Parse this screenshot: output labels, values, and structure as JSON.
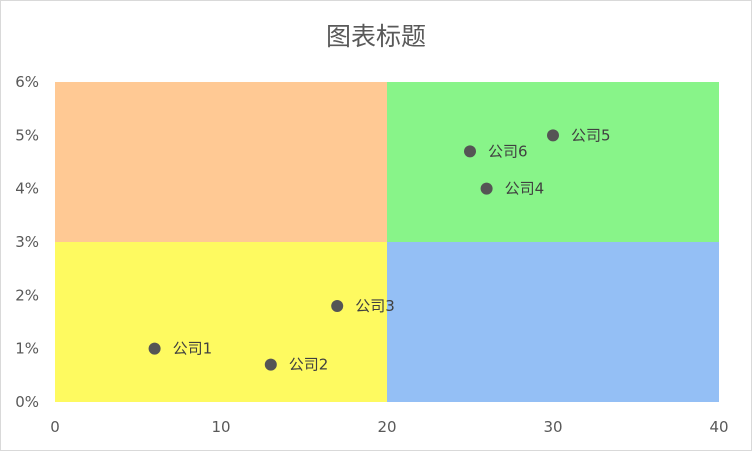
{
  "chart_data": {
    "type": "scatter",
    "title": "图表标题",
    "xlim": [
      0,
      40
    ],
    "ylim": [
      0,
      0.06
    ],
    "x_ticks": [
      0,
      10,
      20,
      30,
      40
    ],
    "y_ticks": [
      0,
      0.01,
      0.02,
      0.03,
      0.04,
      0.05,
      0.06
    ],
    "x_tick_labels": [
      "0",
      "10",
      "20",
      "30",
      "40"
    ],
    "y_tick_labels": [
      "0%",
      "1%",
      "2%",
      "3%",
      "4%",
      "5%",
      "6%"
    ],
    "quadrant_split": {
      "x": 20,
      "y": 0.03
    },
    "quadrant_colors": {
      "top_left": "#ffc994",
      "top_right": "#88f489",
      "bottom_left": "#fefa60",
      "bottom_right": "#94bff5"
    },
    "marker_color": "#555555",
    "points": [
      {
        "label": "公司1",
        "x": 6,
        "y": 0.01
      },
      {
        "label": "公司2",
        "x": 13,
        "y": 0.007
      },
      {
        "label": "公司3",
        "x": 17,
        "y": 0.018
      },
      {
        "label": "公司4",
        "x": 26,
        "y": 0.04
      },
      {
        "label": "公司5",
        "x": 30,
        "y": 0.05
      },
      {
        "label": "公司6",
        "x": 25,
        "y": 0.047
      }
    ]
  }
}
